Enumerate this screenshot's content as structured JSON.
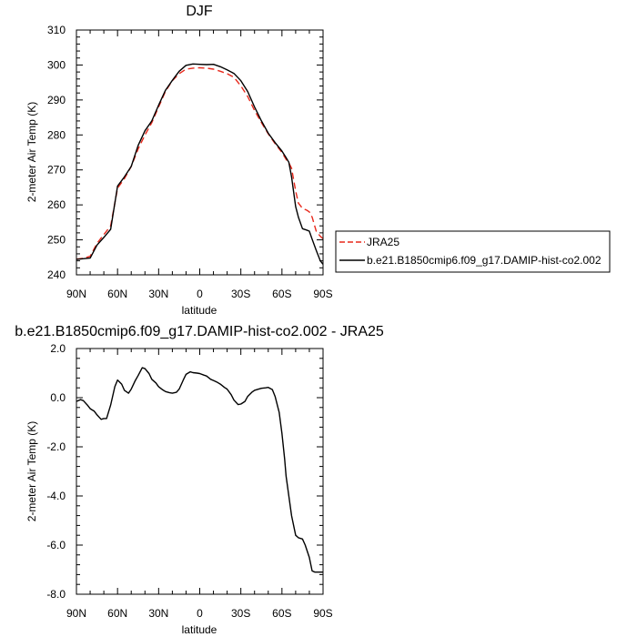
{
  "chart_data": [
    {
      "type": "line",
      "title": "DJF",
      "xlabel": "latitude",
      "ylabel": "2-meter Air Temp (K)",
      "xlim": [
        90,
        -90
      ],
      "ylim": [
        240,
        310
      ],
      "xticks": [
        90,
        60,
        30,
        0,
        -30,
        -60,
        -90
      ],
      "xtick_labels": [
        "90N",
        "60N",
        "30N",
        "0",
        "30S",
        "60S",
        "90S"
      ],
      "yticks": [
        240,
        250,
        260,
        270,
        280,
        290,
        300,
        310
      ],
      "ytick_labels": [
        "240",
        "250",
        "260",
        "270",
        "280",
        "290",
        "300",
        "310"
      ],
      "legend": "right",
      "series": [
        {
          "name": "JRA25",
          "color": "#e8291c",
          "dash": "dashed",
          "x": [
            90,
            85,
            80,
            75,
            70,
            65,
            60,
            55,
            50,
            45,
            40,
            35,
            30,
            25,
            20,
            15,
            10,
            5,
            0,
            -5,
            -10,
            -15,
            -20,
            -25,
            -30,
            -35,
            -40,
            -45,
            -50,
            -55,
            -60,
            -63,
            -65,
            -67,
            -70,
            -72,
            -75,
            -78,
            -80,
            -82,
            -85,
            -88,
            -90
          ],
          "y": [
            244.5,
            244.7,
            245.3,
            249.0,
            251.5,
            254.0,
            264.8,
            267.5,
            271.0,
            276.0,
            280.0,
            283.5,
            288.0,
            292.5,
            295.5,
            297.5,
            298.8,
            299.1,
            299.2,
            299.1,
            298.8,
            298.2,
            297.5,
            296.5,
            294.0,
            291.0,
            287.0,
            283.5,
            280.3,
            277.5,
            275.0,
            273.0,
            272.0,
            270.5,
            264.0,
            260.5,
            259.0,
            258.5,
            258.0,
            256.5,
            252.5,
            251.0,
            250.3
          ]
        },
        {
          "name": "b.e21.B1850cmip6.f09_g17.DAMIP-hist-co2.002",
          "color": "#000000",
          "dash": "solid",
          "x": [
            90,
            85,
            80,
            75,
            70,
            65,
            60,
            55,
            50,
            45,
            40,
            35,
            30,
            25,
            20,
            15,
            10,
            5,
            0,
            -5,
            -10,
            -15,
            -20,
            -25,
            -30,
            -35,
            -40,
            -45,
            -50,
            -55,
            -60,
            -63,
            -65,
            -67,
            -70,
            -72,
            -75,
            -78,
            -80,
            -82,
            -85,
            -88,
            -90
          ],
          "y": [
            244.4,
            244.6,
            244.8,
            248.5,
            250.7,
            253.0,
            265.4,
            268.0,
            271.0,
            277.0,
            281.2,
            284.0,
            288.5,
            292.8,
            295.6,
            298.2,
            299.9,
            300.3,
            300.2,
            300.1,
            300.2,
            299.5,
            298.6,
            297.6,
            295.5,
            292.4,
            288.0,
            284.0,
            280.5,
            277.8,
            275.4,
            273.5,
            272.2,
            268.0,
            259.5,
            256.5,
            253.2,
            252.8,
            252.5,
            250.2,
            247.0,
            244.0,
            243.0
          ]
        }
      ]
    },
    {
      "type": "line",
      "title": "b.e21.B1850cmip6.f09_g17.DAMIP-hist-co2.002 - JRA25",
      "xlabel": "latitude",
      "ylabel": "2-meter Air Temp (K)",
      "xlim": [
        90,
        -90
      ],
      "ylim": [
        -8.0,
        2.0
      ],
      "xticks": [
        90,
        60,
        30,
        0,
        -30,
        -60,
        -90
      ],
      "xtick_labels": [
        "90N",
        "60N",
        "30N",
        "0",
        "30S",
        "60S",
        "90S"
      ],
      "yticks": [
        -8.0,
        -6.0,
        -4.0,
        -2.0,
        0.0,
        2.0
      ],
      "ytick_labels": [
        "-8.0",
        "-6.0",
        "-4.0",
        "-2.0",
        "0.0",
        "2.0"
      ],
      "series": [
        {
          "color": "#000000",
          "dash": "solid",
          "x": [
            90,
            87,
            85,
            82,
            80,
            77,
            75,
            72,
            70,
            68,
            65,
            62,
            60,
            57,
            55,
            52,
            50,
            47,
            45,
            42,
            40,
            37,
            35,
            32,
            30,
            27,
            25,
            22,
            20,
            17,
            15,
            12,
            10,
            7,
            5,
            2,
            0,
            -3,
            -5,
            -8,
            -10,
            -13,
            -15,
            -18,
            -20,
            -23,
            -25,
            -28,
            -30,
            -33,
            -35,
            -38,
            -40,
            -43,
            -45,
            -48,
            -50,
            -53,
            -55,
            -58,
            -60,
            -62,
            -63,
            -65,
            -67,
            -70,
            -72,
            -75,
            -77,
            -80,
            -82,
            -84,
            -86,
            -88,
            -89,
            -90
          ],
          "y": [
            -0.15,
            -0.08,
            -0.12,
            -0.3,
            -0.45,
            -0.55,
            -0.7,
            -0.88,
            -0.85,
            -0.85,
            -0.3,
            0.45,
            0.72,
            0.55,
            0.3,
            0.18,
            0.35,
            0.7,
            0.9,
            1.22,
            1.18,
            0.98,
            0.75,
            0.6,
            0.45,
            0.32,
            0.25,
            0.2,
            0.18,
            0.22,
            0.35,
            0.72,
            0.95,
            1.05,
            1.02,
            1.0,
            0.98,
            0.92,
            0.88,
            0.75,
            0.7,
            0.62,
            0.55,
            0.42,
            0.35,
            0.12,
            -0.1,
            -0.28,
            -0.26,
            -0.15,
            0.05,
            0.22,
            0.3,
            0.35,
            0.38,
            0.4,
            0.42,
            0.33,
            0.05,
            -0.6,
            -1.45,
            -2.5,
            -3.2,
            -4.0,
            -4.8,
            -5.6,
            -5.7,
            -5.75,
            -6.0,
            -6.5,
            -7.05,
            -7.1,
            -7.1,
            -7.1,
            -7.1,
            -7.1
          ]
        }
      ]
    }
  ]
}
